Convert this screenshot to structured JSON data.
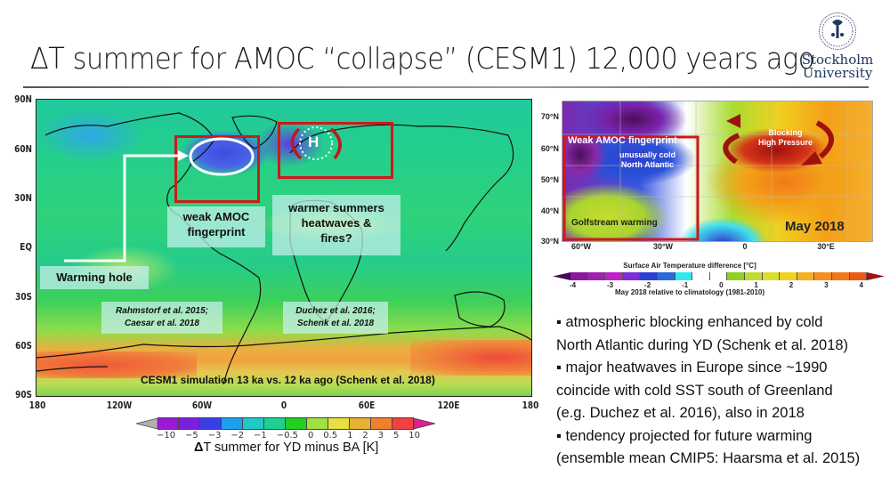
{
  "header": {
    "title": "ΔT summer for AMOC “collapse” (CESM1) 12,000 years ago",
    "logo": {
      "line1": "Stockholm",
      "line2": "University"
    }
  },
  "main_map": {
    "lat_labels": [
      "90N",
      "60N",
      "30N",
      "EQ",
      "30S",
      "60S",
      "90S"
    ],
    "lon_labels": [
      "180",
      "120W",
      "60W",
      "0",
      "60E",
      "120E",
      "180"
    ],
    "annotations": {
      "weak_amoc": [
        "weak AMOC",
        "fingerprint"
      ],
      "warmer": [
        "warmer summers",
        "heatwaves &",
        "fires?"
      ],
      "warming_hole": "Warming  hole",
      "ref_left": [
        "Rahmstorf et al. 2015;",
        "Caesar et al. 2018"
      ],
      "ref_right": [
        "Duchez et al. 2016;",
        "Schenk et al. 2018"
      ],
      "high_pressure": "H",
      "sim_label": "CESM1 simulation 13 ka vs. 12 ka ago (Schenk et al. 2018)"
    },
    "colorbar": {
      "ticks": [
        "−10",
        "−5",
        "−3",
        "−2",
        "−1",
        "−0.5",
        "0",
        "0.5",
        "1",
        "2",
        "3",
        "5",
        "10"
      ],
      "colors": [
        "#9a18d8",
        "#7a1ee0",
        "#3a3ee8",
        "#1ea0f0",
        "#20c8c8",
        "#20d090",
        "#20d020",
        "#a0e040",
        "#e8e040",
        "#e8b030",
        "#f08030",
        "#f04040"
      ],
      "under_color": "#b0b0b0",
      "over_color": "#e02090",
      "title_delta": "Δ",
      "title_rest": "T summer for YD minus BA [K]"
    }
  },
  "right_map": {
    "lat_labels": [
      "70°N",
      "60°N",
      "50°N",
      "40°N",
      "30°N"
    ],
    "lon_labels": [
      "60°W",
      "30°W",
      "0",
      "30°E"
    ],
    "annotations": {
      "weak_amoc": "Weak AMOC fingerprint",
      "cold_na": [
        "unusually cold",
        "North Atlantic"
      ],
      "gulfstream": "Golfstream warming",
      "blocking": [
        "Blocking",
        "High Pressure"
      ],
      "date": "May 2018"
    },
    "colorbar": {
      "title": "Surface Air Temperature difference [°C]",
      "ticks": [
        "-4",
        "-3",
        "-2",
        "-1",
        "0",
        "1",
        "2",
        "3",
        "4"
      ],
      "colors": [
        "#8a1a9a",
        "#a020b0",
        "#c020c8",
        "#7a30d8",
        "#2a40d0",
        "#2a6ad8",
        "#30e8f0",
        "#ffffff",
        "#ffffff",
        "#90d020",
        "#c0dc30",
        "#d8e030",
        "#f0d020",
        "#f4b020",
        "#f49020",
        "#f07818",
        "#e85a18"
      ],
      "under_color": "#4a0a5a",
      "over_color": "#a01010",
      "subtitle": "May 2018 relative to climatology (1981-2010)"
    }
  },
  "bullets": [
    {
      "marker": "▪",
      "text": "atmospheric blocking enhanced by cold",
      "cont": "North Atlantic during YD (Schenk et al. 2018)"
    },
    {
      "marker": "▪",
      "text": "major heatwaves in Europe since ~1990",
      "cont": "coincide with cold SST south of Greenland",
      "cont2": "(e.g. Duchez et al. 2016), also in 2018"
    },
    {
      "marker": "▪",
      "text": "tendency projected for future warming",
      "cont": "(ensemble mean CMIP5: Haarsma et al. 2015)"
    }
  ]
}
